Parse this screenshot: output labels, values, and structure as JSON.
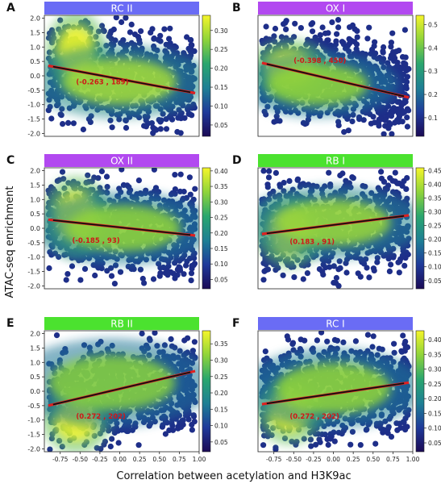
{
  "figure": {
    "ylabel": "ATAC-seq enrichment",
    "xlabel": "Correlation between acetylation and H3K9ac"
  },
  "chart_data": [
    {
      "panel": "A",
      "title": "RC II",
      "title_color": "#6a6cf5",
      "type": "scatter",
      "xlim": [
        -0.95,
        1.0
      ],
      "ylim": [
        -2.1,
        2.1
      ],
      "yticks": [
        "-2.0",
        "-1.5",
        "-1.0",
        "-0.5",
        "0.0",
        "0.5",
        "1.0",
        "1.5",
        "2.0"
      ],
      "xticks": [],
      "colorbar_ticks": [
        "0.05",
        "0.10",
        "0.15",
        "0.20",
        "0.25",
        "0.30"
      ],
      "colorbar_range": [
        0.02,
        0.34
      ],
      "fit_line": {
        "x": [
          -0.9,
          0.95
        ],
        "y": [
          0.35,
          -0.6
        ]
      },
      "annotation": {
        "text": "(-0.263 , 189)",
        "x": -0.55,
        "y": -0.3
      },
      "hotspots": [
        {
          "x": -0.55,
          "y": 0.85,
          "sx": 0.15,
          "sy": 0.55,
          "w": 1.0
        },
        {
          "x": 0.0,
          "y": -0.2,
          "sx": 0.45,
          "sy": 0.5,
          "w": 0.55
        }
      ]
    },
    {
      "panel": "B",
      "title": "OX I",
      "title_color": "#b249f0",
      "type": "scatter",
      "xlim": [
        -0.95,
        1.0
      ],
      "ylim": [
        -2.1,
        2.1
      ],
      "yticks": [],
      "xticks": [],
      "colorbar_ticks": [
        "0.1",
        "0.2",
        "0.3",
        "0.4",
        "0.5"
      ],
      "colorbar_range": [
        0.02,
        0.54
      ],
      "fit_line": {
        "x": [
          -0.9,
          0.95
        ],
        "y": [
          0.45,
          -0.75
        ]
      },
      "annotation": {
        "text": "(-0.398 , 450)",
        "x": -0.5,
        "y": 0.45
      },
      "hotspots": [
        {
          "x": -0.55,
          "y": 0.25,
          "sx": 0.2,
          "sy": 0.4,
          "w": 1.0
        },
        {
          "x": -0.2,
          "y": -0.3,
          "sx": 0.4,
          "sy": 0.45,
          "w": 0.45
        }
      ]
    },
    {
      "panel": "C",
      "title": "OX II",
      "title_color": "#b249f0",
      "type": "scatter",
      "xlim": [
        -0.95,
        1.0
      ],
      "ylim": [
        -2.1,
        2.1
      ],
      "yticks": [
        "-2.0",
        "-1.5",
        "-1.0",
        "-0.5",
        "0.0",
        "0.5",
        "1.0",
        "1.5",
        "2.0"
      ],
      "xticks": [],
      "colorbar_ticks": [
        "0.05",
        "0.10",
        "0.15",
        "0.20",
        "0.25",
        "0.30",
        "0.35",
        "0.40"
      ],
      "colorbar_range": [
        0.02,
        0.41
      ],
      "fit_line": {
        "x": [
          -0.9,
          0.95
        ],
        "y": [
          0.3,
          -0.25
        ]
      },
      "annotation": {
        "text": "(-0.185 , 93)",
        "x": -0.6,
        "y": -0.5
      },
      "hotspots": [
        {
          "x": -0.55,
          "y": 0.4,
          "sx": 0.17,
          "sy": 0.55,
          "w": 1.0
        },
        {
          "x": 0.05,
          "y": 0.0,
          "sx": 0.45,
          "sy": 0.5,
          "w": 0.45
        }
      ]
    },
    {
      "panel": "D",
      "title": "RB I",
      "title_color": "#4be22f",
      "type": "scatter",
      "xlim": [
        -0.95,
        1.0
      ],
      "ylim": [
        -2.1,
        2.1
      ],
      "yticks": [],
      "xticks": [],
      "colorbar_ticks": [
        "0.05",
        "0.10",
        "0.15",
        "0.20",
        "0.25",
        "0.30",
        "0.35",
        "0.40",
        "0.45"
      ],
      "colorbar_range": [
        0.02,
        0.46
      ],
      "fit_line": {
        "x": [
          -0.9,
          0.95
        ],
        "y": [
          -0.2,
          0.45
        ]
      },
      "annotation": {
        "text": "(0.183 , 91)",
        "x": -0.55,
        "y": -0.55
      },
      "hotspots": [
        {
          "x": -0.55,
          "y": -0.1,
          "sx": 0.17,
          "sy": 0.5,
          "w": 1.0
        },
        {
          "x": 0.0,
          "y": 0.2,
          "sx": 0.45,
          "sy": 0.5,
          "w": 0.5
        }
      ]
    },
    {
      "panel": "E",
      "title": "RB II",
      "title_color": "#4be22f",
      "type": "scatter",
      "xlim": [
        -0.95,
        1.0
      ],
      "ylim": [
        -2.1,
        2.1
      ],
      "yticks": [
        "-2.0",
        "-1.5",
        "-1.0",
        "-0.5",
        "0.0",
        "0.5",
        "1.0",
        "1.5",
        "2.0"
      ],
      "xticks": [
        "-0.75",
        "-0.50",
        "-0.25",
        "0.00",
        "0.25",
        "0.50",
        "0.75",
        "1.00"
      ],
      "colorbar_ticks": [
        "0.05",
        "0.10",
        "0.15",
        "0.20",
        "0.25",
        "0.30",
        "0.35"
      ],
      "colorbar_range": [
        0.02,
        0.39
      ],
      "fit_line": {
        "x": [
          -0.9,
          0.95
        ],
        "y": [
          -0.5,
          0.7
        ]
      },
      "annotation": {
        "text": "(0.272 , 202)",
        "x": -0.55,
        "y": -0.95
      },
      "hotspots": [
        {
          "x": -0.55,
          "y": -1.0,
          "sx": 0.17,
          "sy": 0.45,
          "w": 1.0
        },
        {
          "x": -0.1,
          "y": 0.3,
          "sx": 0.5,
          "sy": 0.6,
          "w": 0.4
        }
      ]
    },
    {
      "panel": "F",
      "title": "RC I",
      "title_color": "#6a6cf5",
      "type": "scatter",
      "xlim": [
        -0.95,
        1.0
      ],
      "ylim": [
        -2.1,
        2.1
      ],
      "yticks": [],
      "xticks": [
        "-0.75",
        "-0.50",
        "-0.25",
        "0.00",
        "0.25",
        "0.50",
        "0.75",
        "1.00"
      ],
      "colorbar_ticks": [
        "0.05",
        "0.10",
        "0.15",
        "0.20",
        "0.25",
        "0.30",
        "0.35",
        "0.40"
      ],
      "colorbar_range": [
        0.02,
        0.43
      ],
      "fit_line": {
        "x": [
          -0.9,
          0.95
        ],
        "y": [
          -0.45,
          0.3
        ]
      },
      "annotation": {
        "text": "(0.272 , 202)",
        "x": -0.55,
        "y": -0.95
      },
      "hotspots": [
        {
          "x": -0.55,
          "y": -0.7,
          "sx": 0.17,
          "sy": 0.45,
          "w": 1.0
        },
        {
          "x": 0.0,
          "y": 0.1,
          "sx": 0.45,
          "sy": 0.55,
          "w": 0.45
        }
      ]
    }
  ]
}
